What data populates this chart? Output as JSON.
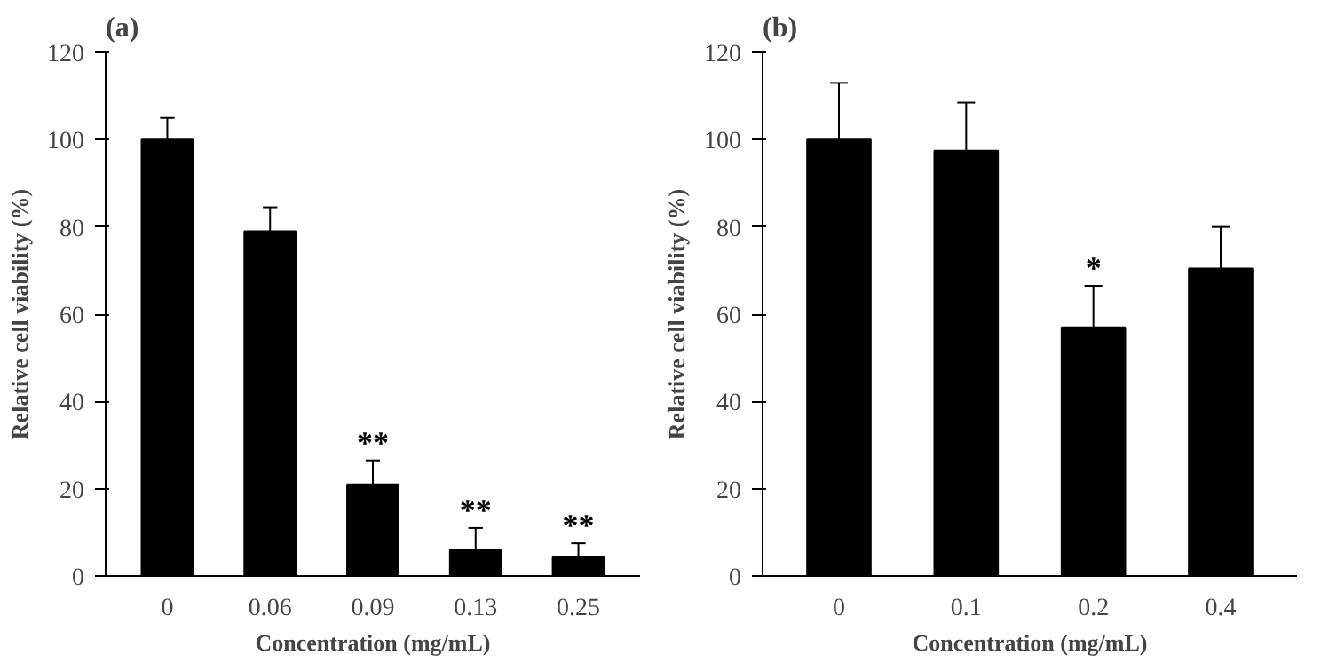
{
  "chart_data": [
    {
      "type": "bar",
      "title": "(a)",
      "xlabel": "Concentration (mg/mL)",
      "ylabel": "Relative cell viability (%)",
      "categories": [
        "0",
        "0.06",
        "0.09",
        "0.13",
        "0.25"
      ],
      "series": [
        {
          "color": "#000000",
          "values": [
            100,
            79,
            21,
            6,
            4.5
          ],
          "errors": [
            [
              100,
              105
            ],
            [
              79,
              84.5
            ],
            [
              21,
              26.5
            ],
            [
              6,
              11
            ],
            [
              4.5,
              7.5
            ]
          ]
        }
      ],
      "ylim": [
        0,
        120
      ],
      "yticks": [
        0,
        20,
        40,
        60,
        80,
        100,
        120
      ],
      "grid": false,
      "annotations": [
        {
          "text": "**",
          "x": "0.09",
          "y": 26.5
        },
        {
          "text": "**",
          "x": "0.13",
          "y": 11
        },
        {
          "text": "**",
          "x": "0.25",
          "y": 7.5
        }
      ]
    },
    {
      "type": "bar",
      "title": "(b)",
      "xlabel": "Concentration (mg/mL)",
      "ylabel": "Relative cell viability (%)",
      "categories": [
        "0",
        "0.1",
        "0.2",
        "0.4"
      ],
      "series": [
        {
          "color": "#000000",
          "values": [
            100,
            97.5,
            57,
            70.5
          ],
          "errors": [
            [
              100,
              113
            ],
            [
              97.5,
              108.5
            ],
            [
              57,
              66.5
            ],
            [
              70.5,
              80
            ]
          ]
        }
      ],
      "ylim": [
        0,
        120
      ],
      "yticks": [
        0,
        20,
        40,
        60,
        80,
        100,
        120
      ],
      "grid": false,
      "annotations": [
        {
          "text": "*",
          "x": "0.2",
          "y": 66.5
        }
      ]
    }
  ]
}
